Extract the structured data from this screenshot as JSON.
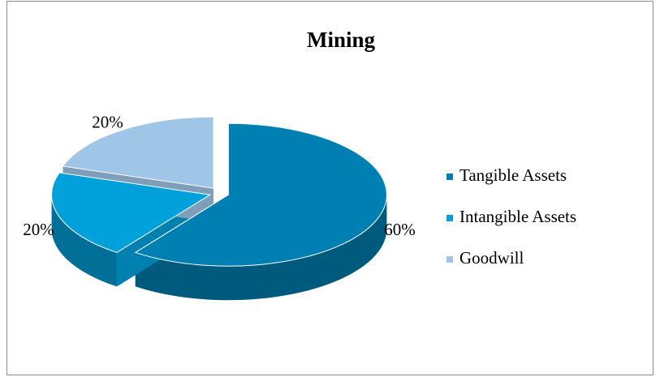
{
  "chart_data": {
    "type": "pie3d",
    "title": "Mining",
    "categories": [
      "Tangible Assets",
      "Intangible Assets",
      "Goodwill"
    ],
    "values": [
      60,
      20,
      20
    ],
    "value_labels": [
      "60%",
      "20%",
      "20%"
    ],
    "colors": [
      "#0080b2",
      "#00a0da",
      "#9fc6e7"
    ],
    "legend": "right"
  }
}
